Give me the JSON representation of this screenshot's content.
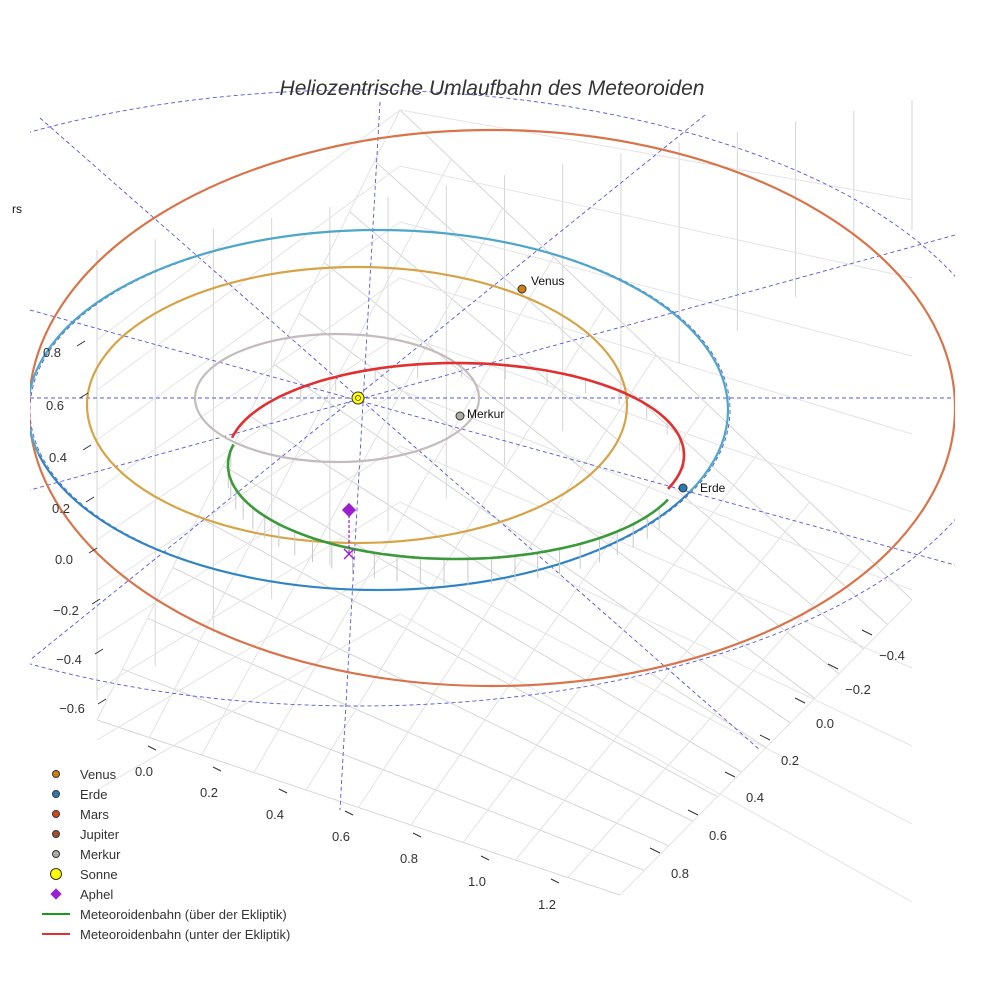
{
  "chart_data": {
    "type": "line3d",
    "title": "Heliozentrische Umlaufbahn des Meteoroiden",
    "axes": {
      "x": {
        "ticks": [
          "0.0",
          "0.2",
          "0.4",
          "0.6",
          "0.8",
          "1.0",
          "1.2"
        ],
        "range": [
          -0.1,
          1.3
        ]
      },
      "y": {
        "ticks": [
          "−0.4",
          "−0.2",
          "0.0",
          "0.2",
          "0.4",
          "0.6",
          "0.8"
        ],
        "range": [
          -0.5,
          0.9
        ]
      },
      "z": {
        "ticks": [
          "0.8",
          "0.6",
          "0.4",
          "0.2",
          "0.0",
          "−0.2",
          "−0.4",
          "−0.6"
        ],
        "range": [
          -0.7,
          0.9
        ]
      }
    },
    "orbits": [
      {
        "name": "Mars",
        "semi_major_au": 1.52,
        "color": "#d8734a"
      },
      {
        "name": "Erde",
        "semi_major_au": 1.0,
        "color": "#4ea6c8"
      },
      {
        "name": "Venus",
        "semi_major_au": 0.72,
        "color": "#d6a447"
      },
      {
        "name": "Merkur",
        "semi_major_au": 0.39,
        "color": "#c4bcbc"
      }
    ],
    "planets": [
      {
        "name": "Venus",
        "label": "Venus",
        "color": "#d27c12"
      },
      {
        "name": "Erde",
        "label": "Erde",
        "color": "#2a7ab5"
      },
      {
        "name": "Merkur",
        "label": "Merkur",
        "color": "#b0aaa4"
      },
      {
        "name": "Mars",
        "label": "rs",
        "color": "#d8734a"
      }
    ],
    "meteoroid": {
      "perihelion_au": 0.33,
      "aphelion_au": 1.0,
      "above_color": "#3a9a3a",
      "below_color": "#e03030",
      "aphelion_marker_color": "#9b1fd0"
    },
    "legend": [
      {
        "label": "Venus",
        "symbol": "dot",
        "color": "#d27c12"
      },
      {
        "label": "Erde",
        "symbol": "dot",
        "color": "#2a7ab5"
      },
      {
        "label": "Mars",
        "symbol": "dot",
        "color": "#d4461c"
      },
      {
        "label": "Jupiter",
        "symbol": "dot",
        "color": "#a0522d"
      },
      {
        "label": "Merkur",
        "symbol": "dot",
        "color": "#b0aaa4"
      },
      {
        "label": "Sonne",
        "symbol": "big-dot",
        "color": "#ffff00"
      },
      {
        "label": "Aphel",
        "symbol": "diamond",
        "color": "#9b1fd0"
      },
      {
        "label": "Meteoroidenbahn (über der Ekliptik)",
        "symbol": "line",
        "color": "#1a9a1a"
      },
      {
        "label": "Meteoroidenbahn (unter der Ekliptik)",
        "symbol": "line",
        "color": "#e03030"
      }
    ]
  }
}
